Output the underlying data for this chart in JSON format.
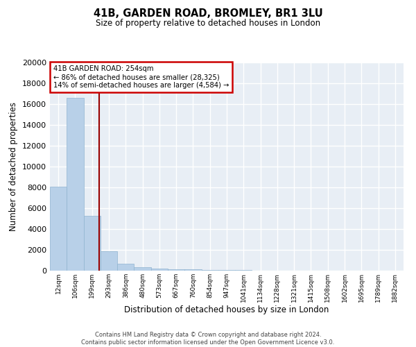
{
  "title": "41B, GARDEN ROAD, BROMLEY, BR1 3LU",
  "subtitle": "Size of property relative to detached houses in London",
  "xlabel": "Distribution of detached houses by size in London",
  "ylabel": "Number of detached properties",
  "categories": [
    "12sqm",
    "106sqm",
    "199sqm",
    "293sqm",
    "386sqm",
    "480sqm",
    "573sqm",
    "667sqm",
    "760sqm",
    "854sqm",
    "947sqm",
    "1041sqm",
    "1134sqm",
    "1228sqm",
    "1321sqm",
    "1415sqm",
    "1508sqm",
    "1602sqm",
    "1695sqm",
    "1789sqm",
    "1882sqm"
  ],
  "values": [
    8100,
    16600,
    5300,
    1850,
    650,
    330,
    200,
    150,
    130,
    100,
    60,
    40,
    30,
    20,
    15,
    10,
    8,
    5,
    4,
    3,
    2
  ],
  "bar_color": "#b8d0e8",
  "bar_edge_color": "#90b4d0",
  "subject_line_color": "#990000",
  "annotation_title": "41B GARDEN ROAD: 254sqm",
  "annotation_line1": "← 86% of detached houses are smaller (28,325)",
  "annotation_line2": "14% of semi-detached houses are larger (4,584) →",
  "annotation_box_color": "#cc0000",
  "ylim": [
    0,
    20000
  ],
  "yticks": [
    0,
    2000,
    4000,
    6000,
    8000,
    10000,
    12000,
    14000,
    16000,
    18000,
    20000
  ],
  "bg_color": "#e8eef5",
  "grid_color": "#ffffff",
  "footer_line1": "Contains HM Land Registry data © Crown copyright and database right 2024.",
  "footer_line2": "Contains public sector information licensed under the Open Government Licence v3.0."
}
